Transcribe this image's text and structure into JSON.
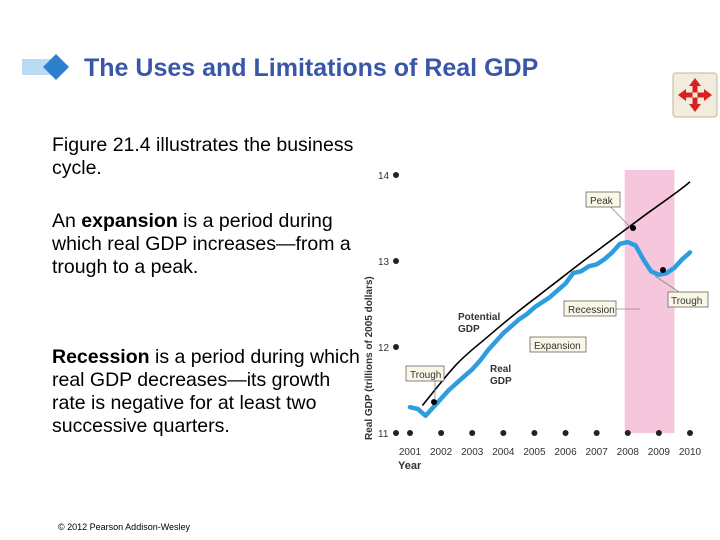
{
  "slide": {
    "title": "The Uses and Limitations of Real GDP",
    "para1": "Figure 21.4 illustrates the business cycle.",
    "para2_bold": "expansion",
    "para2_pre": "An ",
    "para2_post": " is a period during which real GDP increases—from a trough to a peak.",
    "para3_bold": "Recession",
    "para3_post": " is a period during which real GDP decreases—its growth rate is negative for at least two successive quarters.",
    "copyright": "© 2012 Pearson Addison-Wesley",
    "colors": {
      "title": "#3a56a8",
      "accent": "#6fb4e6",
      "recession": "#f5c6dc",
      "real_gdp": "#2e9de0"
    }
  },
  "chart_data": {
    "type": "line",
    "xlabel": "Year",
    "ylabel": "Real GDP (trillions of 2005 dollars)",
    "x_ticks": [
      "2001",
      "2002",
      "2003",
      "2004",
      "2005",
      "2006",
      "2007",
      "2008",
      "2009",
      "2010"
    ],
    "y_ticks": [
      "11",
      "12",
      "13",
      "14"
    ],
    "xlim": [
      2001,
      2010
    ],
    "ylim": [
      11,
      14
    ],
    "recession_band": [
      2007.9,
      2009.5
    ],
    "series": [
      {
        "name": "Potential GDP",
        "color": "#000000",
        "x": [
          2001.4,
          2002.5,
          2003.5,
          2004.5,
          2005.5,
          2006.5,
          2007.5,
          2008.5,
          2009.5,
          2010
        ],
        "y": [
          11.32,
          11.8,
          12.12,
          12.42,
          12.7,
          12.98,
          13.25,
          13.52,
          13.78,
          13.92
        ]
      },
      {
        "name": "Real GDP",
        "color": "#2e9de0",
        "x": [
          2001,
          2001.25,
          2001.5,
          2001.75,
          2002,
          2002.25,
          2002.5,
          2002.75,
          2003,
          2003.25,
          2003.5,
          2003.75,
          2004,
          2004.25,
          2004.5,
          2004.75,
          2005,
          2005.25,
          2005.5,
          2005.75,
          2006,
          2006.25,
          2006.5,
          2006.75,
          2007,
          2007.25,
          2007.5,
          2007.75,
          2008,
          2008.25,
          2008.5,
          2008.75,
          2009,
          2009.25,
          2009.5,
          2009.75,
          2010
        ],
        "y": [
          11.3,
          11.28,
          11.2,
          11.3,
          11.4,
          11.5,
          11.58,
          11.66,
          11.74,
          11.84,
          11.96,
          12.06,
          12.16,
          12.24,
          12.32,
          12.38,
          12.46,
          12.52,
          12.58,
          12.66,
          12.74,
          12.86,
          12.88,
          12.94,
          12.96,
          13.02,
          13.1,
          13.2,
          13.22,
          13.18,
          13.02,
          12.88,
          12.84,
          12.86,
          12.92,
          13.02,
          13.1
        ]
      }
    ],
    "annotations": {
      "peak": "Peak",
      "trough_right": "Trough",
      "recession": "Recession",
      "expansion": "Expansion",
      "trough_left": "Trough",
      "potential_gdp": [
        "Potential",
        "GDP"
      ],
      "real_gdp": [
        "Real",
        "GDP"
      ]
    }
  }
}
